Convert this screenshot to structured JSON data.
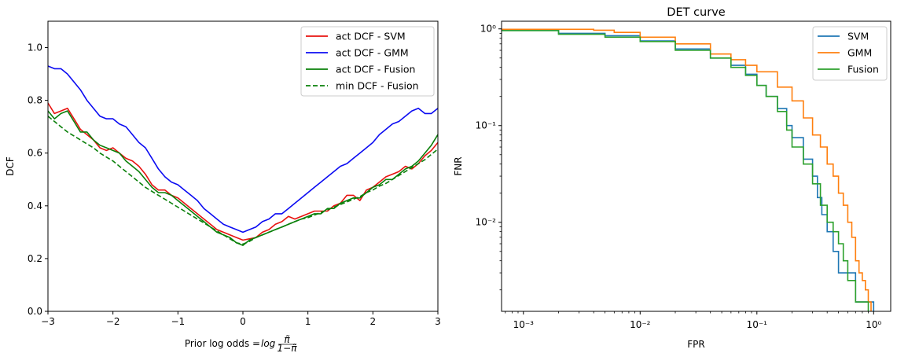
{
  "chart_data": [
    {
      "type": "line",
      "title": "",
      "xlabel_prefix": "Prior log odds = ",
      "xlabel_math": "log",
      "xlabel_frac_num": "π̃",
      "xlabel_frac_den": "1−π̃",
      "ylabel": "DCF",
      "xlim": [
        -3,
        3
      ],
      "ylim": [
        0,
        1.1
      ],
      "xticks": [
        -3,
        -2,
        -1,
        0,
        1,
        2,
        3
      ],
      "xtick_labels": [
        "−3",
        "−2",
        "−1",
        "0",
        "1",
        "2",
        "3"
      ],
      "yticks": [
        0.0,
        0.2,
        0.4,
        0.6,
        0.8,
        1.0
      ],
      "ytick_labels": [
        "0.0",
        "0.2",
        "0.4",
        "0.6",
        "0.8",
        "1.0"
      ],
      "grid": false,
      "legend_placement": "top-right",
      "series": [
        {
          "name": "act DCF - SVM",
          "color": "#e8120f",
          "dash": "solid",
          "x": [
            -3,
            -2.9,
            -2.8,
            -2.7,
            -2.6,
            -2.5,
            -2.4,
            -2.3,
            -2.2,
            -2.1,
            -2,
            -1.9,
            -1.8,
            -1.7,
            -1.6,
            -1.5,
            -1.4,
            -1.3,
            -1.2,
            -1.1,
            -1,
            -0.9,
            -0.8,
            -0.7,
            -0.6,
            -0.5,
            -0.4,
            -0.3,
            -0.2,
            -0.1,
            0,
            0.1,
            0.2,
            0.3,
            0.4,
            0.5,
            0.6,
            0.7,
            0.8,
            0.9,
            1,
            1.1,
            1.2,
            1.3,
            1.4,
            1.5,
            1.6,
            1.7,
            1.8,
            1.9,
            2,
            2.1,
            2.2,
            2.3,
            2.4,
            2.5,
            2.6,
            2.7,
            2.8,
            2.9,
            3
          ],
          "y": [
            0.79,
            0.75,
            0.76,
            0.77,
            0.73,
            0.69,
            0.67,
            0.65,
            0.62,
            0.61,
            0.62,
            0.6,
            0.58,
            0.57,
            0.55,
            0.52,
            0.48,
            0.46,
            0.46,
            0.44,
            0.43,
            0.41,
            0.39,
            0.37,
            0.35,
            0.33,
            0.31,
            0.3,
            0.29,
            0.28,
            0.27,
            0.275,
            0.28,
            0.3,
            0.31,
            0.33,
            0.34,
            0.36,
            0.35,
            0.36,
            0.37,
            0.38,
            0.38,
            0.38,
            0.4,
            0.41,
            0.44,
            0.44,
            0.42,
            0.46,
            0.47,
            0.49,
            0.51,
            0.52,
            0.53,
            0.55,
            0.54,
            0.56,
            0.59,
            0.61,
            0.64
          ]
        },
        {
          "name": "act DCF - GMM",
          "color": "#0b0bf2",
          "dash": "solid",
          "x": [
            -3,
            -2.9,
            -2.8,
            -2.7,
            -2.6,
            -2.5,
            -2.4,
            -2.3,
            -2.2,
            -2.1,
            -2,
            -1.9,
            -1.8,
            -1.7,
            -1.6,
            -1.5,
            -1.4,
            -1.3,
            -1.2,
            -1.1,
            -1,
            -0.9,
            -0.8,
            -0.7,
            -0.6,
            -0.5,
            -0.4,
            -0.3,
            -0.2,
            -0.1,
            0,
            0.1,
            0.2,
            0.3,
            0.4,
            0.5,
            0.6,
            0.7,
            0.8,
            0.9,
            1,
            1.1,
            1.2,
            1.3,
            1.4,
            1.5,
            1.6,
            1.7,
            1.8,
            1.9,
            2,
            2.1,
            2.2,
            2.3,
            2.4,
            2.5,
            2.6,
            2.7,
            2.8,
            2.9,
            3
          ],
          "y": [
            0.93,
            0.92,
            0.92,
            0.9,
            0.87,
            0.84,
            0.8,
            0.77,
            0.74,
            0.73,
            0.73,
            0.71,
            0.7,
            0.67,
            0.64,
            0.62,
            0.58,
            0.54,
            0.51,
            0.49,
            0.48,
            0.46,
            0.44,
            0.42,
            0.39,
            0.37,
            0.35,
            0.33,
            0.32,
            0.31,
            0.3,
            0.31,
            0.32,
            0.34,
            0.35,
            0.37,
            0.37,
            0.39,
            0.41,
            0.43,
            0.45,
            0.47,
            0.49,
            0.51,
            0.53,
            0.55,
            0.56,
            0.58,
            0.6,
            0.62,
            0.64,
            0.67,
            0.69,
            0.71,
            0.72,
            0.74,
            0.76,
            0.77,
            0.75,
            0.75,
            0.77
          ]
        },
        {
          "name": "act DCF - Fusion",
          "color": "#0a800a",
          "dash": "solid",
          "x": [
            -3,
            -2.9,
            -2.8,
            -2.7,
            -2.6,
            -2.5,
            -2.4,
            -2.3,
            -2.2,
            -2.1,
            -2,
            -1.9,
            -1.8,
            -1.7,
            -1.6,
            -1.5,
            -1.4,
            -1.3,
            -1.2,
            -1.1,
            -1,
            -0.9,
            -0.8,
            -0.7,
            -0.6,
            -0.5,
            -0.4,
            -0.3,
            -0.2,
            -0.1,
            0,
            0.1,
            0.2,
            0.3,
            0.4,
            0.5,
            0.6,
            0.7,
            0.8,
            0.9,
            1,
            1.1,
            1.2,
            1.3,
            1.4,
            1.5,
            1.6,
            1.7,
            1.8,
            1.9,
            2,
            2.1,
            2.2,
            2.3,
            2.4,
            2.5,
            2.6,
            2.7,
            2.8,
            2.9,
            3
          ],
          "y": [
            0.76,
            0.73,
            0.75,
            0.76,
            0.72,
            0.68,
            0.68,
            0.65,
            0.63,
            0.62,
            0.61,
            0.6,
            0.57,
            0.55,
            0.53,
            0.5,
            0.47,
            0.45,
            0.45,
            0.44,
            0.42,
            0.4,
            0.38,
            0.36,
            0.34,
            0.32,
            0.3,
            0.29,
            0.28,
            0.26,
            0.25,
            0.27,
            0.28,
            0.29,
            0.3,
            0.31,
            0.32,
            0.33,
            0.34,
            0.35,
            0.36,
            0.37,
            0.37,
            0.39,
            0.39,
            0.41,
            0.42,
            0.43,
            0.43,
            0.45,
            0.47,
            0.48,
            0.5,
            0.5,
            0.52,
            0.54,
            0.55,
            0.57,
            0.6,
            0.63,
            0.67
          ]
        },
        {
          "name": "min DCF - Fusion",
          "color": "#0a800a",
          "dash": "dashed",
          "x": [
            -3,
            -2.9,
            -2.8,
            -2.7,
            -2.6,
            -2.5,
            -2.4,
            -2.3,
            -2.2,
            -2.1,
            -2,
            -1.9,
            -1.8,
            -1.7,
            -1.6,
            -1.5,
            -1.4,
            -1.3,
            -1.2,
            -1.1,
            -1,
            -0.9,
            -0.8,
            -0.7,
            -0.6,
            -0.5,
            -0.4,
            -0.3,
            -0.2,
            -0.1,
            0,
            0.1,
            0.2,
            0.3,
            0.4,
            0.5,
            0.6,
            0.7,
            0.8,
            0.9,
            1,
            1.1,
            1.2,
            1.3,
            1.4,
            1.5,
            1.6,
            1.7,
            1.8,
            1.9,
            2,
            2.1,
            2.2,
            2.3,
            2.4,
            2.5,
            2.6,
            2.7,
            2.8,
            2.9,
            3
          ],
          "y": [
            0.74,
            0.72,
            0.7,
            0.68,
            0.665,
            0.65,
            0.635,
            0.62,
            0.6,
            0.585,
            0.57,
            0.55,
            0.53,
            0.51,
            0.49,
            0.47,
            0.455,
            0.44,
            0.425,
            0.41,
            0.395,
            0.38,
            0.365,
            0.35,
            0.335,
            0.32,
            0.305,
            0.29,
            0.275,
            0.26,
            0.255,
            0.265,
            0.28,
            0.29,
            0.3,
            0.31,
            0.32,
            0.33,
            0.34,
            0.35,
            0.355,
            0.365,
            0.375,
            0.385,
            0.395,
            0.405,
            0.415,
            0.425,
            0.435,
            0.45,
            0.46,
            0.475,
            0.485,
            0.5,
            0.515,
            0.53,
            0.545,
            0.56,
            0.575,
            0.595,
            0.615
          ]
        }
      ]
    },
    {
      "type": "line",
      "title": "DET curve",
      "xlabel": "FPR",
      "ylabel": "FNR",
      "xscale": "log",
      "yscale": "log",
      "xlim": [
        0.00065,
        1.4
      ],
      "ylim": [
        0.0012,
        1.2
      ],
      "xticks": [
        0.001,
        0.01,
        0.1,
        1
      ],
      "xtick_labels": [
        "10⁻³",
        "10⁻²",
        "10⁻¹",
        "10⁰"
      ],
      "yticks": [
        0.01,
        0.1,
        1
      ],
      "ytick_labels": [
        "10⁻²",
        "10⁻¹",
        "10⁰"
      ],
      "grid": false,
      "legend_placement": "top-right",
      "series": [
        {
          "name": "SVM",
          "color": "#1f77b4",
          "x": [
            0.00065,
            0.002,
            0.005,
            0.01,
            0.02,
            0.04,
            0.06,
            0.08,
            0.1,
            0.12,
            0.15,
            0.18,
            0.2,
            0.25,
            0.3,
            0.33,
            0.36,
            0.4,
            0.45,
            0.5,
            0.6,
            0.7,
            0.8,
            0.9,
            1.0
          ],
          "y": [
            0.97,
            0.9,
            0.85,
            0.75,
            0.62,
            0.5,
            0.42,
            0.34,
            0.26,
            0.2,
            0.15,
            0.1,
            0.075,
            0.045,
            0.03,
            0.018,
            0.012,
            0.008,
            0.005,
            0.003,
            0.003,
            0.0015,
            0.0015,
            0.0015,
            0.0015
          ]
        },
        {
          "name": "GMM",
          "color": "#ff7f0e",
          "x": [
            0.00065,
            0.002,
            0.004,
            0.006,
            0.01,
            0.02,
            0.04,
            0.06,
            0.08,
            0.1,
            0.15,
            0.2,
            0.25,
            0.3,
            0.35,
            0.4,
            0.45,
            0.5,
            0.55,
            0.6,
            0.65,
            0.7,
            0.75,
            0.8,
            0.85,
            0.9,
            0.95
          ],
          "y": [
            0.99,
            0.99,
            0.97,
            0.92,
            0.82,
            0.7,
            0.55,
            0.48,
            0.42,
            0.36,
            0.25,
            0.18,
            0.12,
            0.08,
            0.06,
            0.04,
            0.03,
            0.02,
            0.015,
            0.01,
            0.007,
            0.004,
            0.003,
            0.0025,
            0.002,
            0.0015,
            0.0012
          ]
        },
        {
          "name": "Fusion",
          "color": "#2ca02c",
          "x": [
            0.00065,
            0.002,
            0.005,
            0.01,
            0.02,
            0.04,
            0.06,
            0.08,
            0.1,
            0.12,
            0.15,
            0.18,
            0.2,
            0.25,
            0.3,
            0.35,
            0.4,
            0.45,
            0.5,
            0.55,
            0.6,
            0.7,
            0.8,
            0.9
          ],
          "y": [
            0.96,
            0.88,
            0.82,
            0.74,
            0.6,
            0.5,
            0.4,
            0.33,
            0.26,
            0.2,
            0.14,
            0.09,
            0.06,
            0.04,
            0.025,
            0.015,
            0.01,
            0.008,
            0.006,
            0.004,
            0.0025,
            0.0015,
            0.0015,
            0.0015
          ]
        }
      ]
    }
  ]
}
